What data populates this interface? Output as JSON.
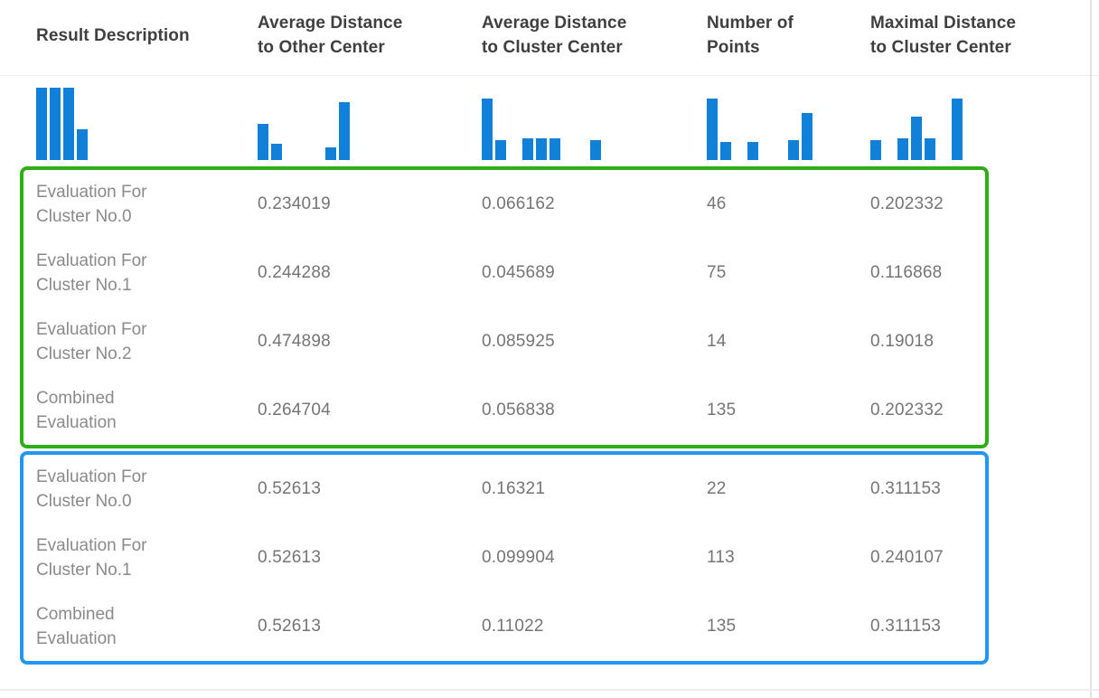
{
  "header": {
    "columns": [
      {
        "lines": [
          "Result Description"
        ]
      },
      {
        "lines": [
          "Average Distance",
          "to Other Center"
        ]
      },
      {
        "lines": [
          "Average Distance",
          "to Cluster Center"
        ]
      },
      {
        "lines": [
          "Number of",
          "Points"
        ]
      },
      {
        "lines": [
          "Maximal Distance",
          "to Cluster Center"
        ]
      }
    ]
  },
  "histograms": {
    "bar_color": "#1180d9",
    "columns": [
      {
        "name": "result-description-histogram",
        "heights": [
          100,
          100,
          100,
          42
        ]
      },
      {
        "name": "avg-distance-other-center-histogram",
        "heights": [
          50,
          22,
          0,
          0,
          0,
          18,
          80
        ]
      },
      {
        "name": "avg-distance-cluster-center-histogram",
        "heights": [
          85,
          28,
          0,
          30,
          30,
          30,
          0,
          0,
          28
        ]
      },
      {
        "name": "number-of-points-histogram",
        "heights": [
          85,
          25,
          0,
          25,
          0,
          0,
          28,
          65
        ]
      },
      {
        "name": "max-distance-cluster-center-histogram",
        "heights": [
          28,
          0,
          30,
          60,
          30,
          0,
          85
        ]
      }
    ]
  },
  "groups": [
    {
      "name": "model-1-results",
      "border_color": "#2ead17",
      "rows": [
        {
          "label_lines": [
            "Evaluation For",
            "Cluster No.0"
          ],
          "values": [
            "0.234019",
            "0.066162",
            "46",
            "0.202332"
          ]
        },
        {
          "label_lines": [
            "Evaluation For",
            "Cluster No.1"
          ],
          "values": [
            "0.244288",
            "0.045689",
            "75",
            "0.116868"
          ]
        },
        {
          "label_lines": [
            "Evaluation For",
            "Cluster No.2"
          ],
          "values": [
            "0.474898",
            "0.085925",
            "14",
            "0.19018"
          ]
        },
        {
          "label_lines": [
            "Combined",
            "Evaluation"
          ],
          "values": [
            "0.264704",
            "0.056838",
            "135",
            "0.202332"
          ]
        }
      ]
    },
    {
      "name": "model-2-results",
      "border_color": "#2196f3",
      "rows": [
        {
          "label_lines": [
            "Evaluation For",
            "Cluster No.0"
          ],
          "values": [
            "0.52613",
            "0.16321",
            "22",
            "0.311153"
          ]
        },
        {
          "label_lines": [
            "Evaluation For",
            "Cluster No.1"
          ],
          "values": [
            "0.52613",
            "0.099904",
            "113",
            "0.240107"
          ]
        },
        {
          "label_lines": [
            "Combined",
            "Evaluation"
          ],
          "values": [
            "0.52613",
            "0.11022",
            "135",
            "0.311153"
          ]
        }
      ]
    }
  ],
  "colors": {
    "bar": "#1180d9",
    "header_text": "#3f3f3f",
    "label_text": "#8a8a8a",
    "value_text": "#757575",
    "divider": "#ededed",
    "green_box": "#2ead17",
    "blue_box": "#2196f3"
  }
}
